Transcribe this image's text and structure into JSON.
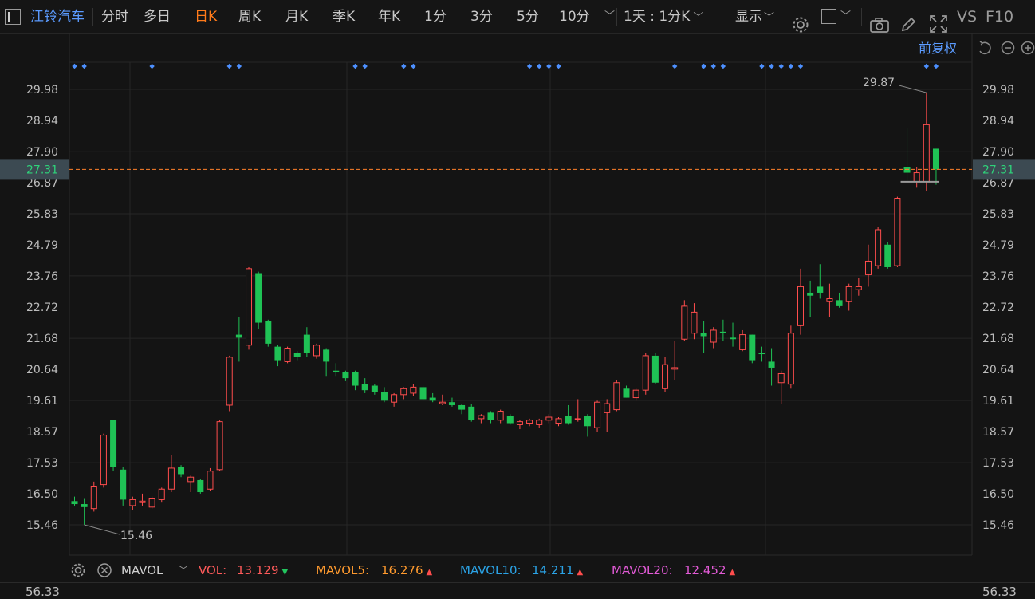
{
  "toolbar": {
    "stock_name": "江铃汽车",
    "periods": [
      {
        "label": "分时",
        "active": false
      },
      {
        "label": "多日",
        "active": false
      },
      {
        "label": "日K",
        "active": true
      },
      {
        "label": "周K",
        "active": false
      },
      {
        "label": "月K",
        "active": false
      },
      {
        "label": "季K",
        "active": false
      },
      {
        "label": "年K",
        "active": false
      },
      {
        "label": "1分",
        "active": false
      },
      {
        "label": "3分",
        "active": false
      },
      {
        "label": "5分",
        "active": false
      },
      {
        "label": "10分",
        "active": false
      }
    ],
    "combo_label": "1天 : 1分K",
    "display_label": "显示",
    "vs_label": "VS",
    "f10_label": "F10"
  },
  "chart_header": {
    "adjust_label": "前复权"
  },
  "indicator_bar": {
    "name": "MAVOL",
    "items": [
      {
        "label": "VOL:",
        "value": "13.129",
        "dir": "down",
        "color": "#ff5a5a"
      },
      {
        "label": "MAVOL5:",
        "value": "16.276",
        "dir": "up",
        "color": "#ff9a2e"
      },
      {
        "label": "MAVOL10:",
        "value": "14.211",
        "dir": "up",
        "color": "#2ba3e6"
      },
      {
        "label": "MAVOL20:",
        "value": "12.452",
        "dir": "up",
        "color": "#e25ad6"
      }
    ]
  },
  "volume_axis": {
    "top_label": "56.33"
  },
  "chart_data": {
    "type": "candlestick",
    "y_ticks": [
      "29.98",
      "28.94",
      "27.90",
      "26.87",
      "25.83",
      "24.79",
      "23.76",
      "22.72",
      "21.68",
      "20.64",
      "19.61",
      "18.57",
      "17.53",
      "16.50",
      "15.46"
    ],
    "ylim": [
      14.7,
      30.5
    ],
    "current_price": "27.31",
    "max_label": "29.87",
    "min_label": "15.46",
    "candles": [
      {
        "o": 16.25,
        "h": 16.4,
        "l": 16.1,
        "c": 16.15
      },
      {
        "o": 16.15,
        "h": 16.35,
        "l": 15.46,
        "c": 16.05
      },
      {
        "o": 16.0,
        "h": 16.9,
        "l": 15.9,
        "c": 16.75
      },
      {
        "o": 16.8,
        "h": 18.5,
        "l": 16.7,
        "c": 18.45
      },
      {
        "o": 18.95,
        "h": 18.95,
        "l": 17.25,
        "c": 17.4
      },
      {
        "o": 17.3,
        "h": 17.4,
        "l": 16.1,
        "c": 16.3
      },
      {
        "o": 16.1,
        "h": 16.4,
        "l": 15.95,
        "c": 16.3
      },
      {
        "o": 16.2,
        "h": 16.5,
        "l": 16.1,
        "c": 16.25
      },
      {
        "o": 16.05,
        "h": 16.4,
        "l": 16.0,
        "c": 16.35
      },
      {
        "o": 16.3,
        "h": 16.7,
        "l": 16.2,
        "c": 16.65
      },
      {
        "o": 16.65,
        "h": 17.8,
        "l": 16.55,
        "c": 17.35
      },
      {
        "o": 17.4,
        "h": 17.45,
        "l": 17.05,
        "c": 17.15
      },
      {
        "o": 16.9,
        "h": 17.1,
        "l": 16.55,
        "c": 17.05
      },
      {
        "o": 16.95,
        "h": 17.0,
        "l": 16.5,
        "c": 16.55
      },
      {
        "o": 16.65,
        "h": 17.35,
        "l": 16.6,
        "c": 17.25
      },
      {
        "o": 17.3,
        "h": 18.95,
        "l": 17.25,
        "c": 18.9
      },
      {
        "o": 19.45,
        "h": 21.1,
        "l": 19.25,
        "c": 21.05
      },
      {
        "o": 21.8,
        "h": 22.4,
        "l": 20.9,
        "c": 21.7
      },
      {
        "o": 21.45,
        "h": 24.05,
        "l": 21.3,
        "c": 24.0
      },
      {
        "o": 23.85,
        "h": 23.9,
        "l": 22.0,
        "c": 22.2
      },
      {
        "o": 22.25,
        "h": 22.3,
        "l": 21.4,
        "c": 21.5
      },
      {
        "o": 21.4,
        "h": 21.45,
        "l": 20.75,
        "c": 20.95
      },
      {
        "o": 20.9,
        "h": 21.4,
        "l": 20.85,
        "c": 21.35
      },
      {
        "o": 21.2,
        "h": 21.25,
        "l": 20.95,
        "c": 21.05
      },
      {
        "o": 21.8,
        "h": 22.05,
        "l": 21.05,
        "c": 21.2
      },
      {
        "o": 21.1,
        "h": 21.5,
        "l": 21.0,
        "c": 21.45
      },
      {
        "o": 21.3,
        "h": 21.35,
        "l": 20.4,
        "c": 20.9
      },
      {
        "o": 20.6,
        "h": 20.85,
        "l": 20.4,
        "c": 20.55
      },
      {
        "o": 20.55,
        "h": 20.6,
        "l": 20.25,
        "c": 20.35
      },
      {
        "o": 20.55,
        "h": 20.6,
        "l": 19.95,
        "c": 20.1
      },
      {
        "o": 20.15,
        "h": 20.35,
        "l": 19.85,
        "c": 19.95
      },
      {
        "o": 20.1,
        "h": 20.15,
        "l": 19.8,
        "c": 19.9
      },
      {
        "o": 19.9,
        "h": 20.05,
        "l": 19.55,
        "c": 19.6
      },
      {
        "o": 19.55,
        "h": 19.85,
        "l": 19.4,
        "c": 19.8
      },
      {
        "o": 19.8,
        "h": 20.05,
        "l": 19.65,
        "c": 20.0
      },
      {
        "o": 19.85,
        "h": 20.15,
        "l": 19.75,
        "c": 20.05
      },
      {
        "o": 20.05,
        "h": 20.1,
        "l": 19.6,
        "c": 19.65
      },
      {
        "o": 19.7,
        "h": 19.85,
        "l": 19.55,
        "c": 19.6
      },
      {
        "o": 19.5,
        "h": 19.8,
        "l": 19.45,
        "c": 19.55
      },
      {
        "o": 19.55,
        "h": 19.7,
        "l": 19.4,
        "c": 19.45
      },
      {
        "o": 19.45,
        "h": 19.5,
        "l": 19.15,
        "c": 19.3
      },
      {
        "o": 19.4,
        "h": 19.5,
        "l": 18.9,
        "c": 18.95
      },
      {
        "o": 19.0,
        "h": 19.15,
        "l": 18.85,
        "c": 19.1
      },
      {
        "o": 19.2,
        "h": 19.25,
        "l": 18.85,
        "c": 18.95
      },
      {
        "o": 18.95,
        "h": 19.3,
        "l": 18.85,
        "c": 19.25
      },
      {
        "o": 19.1,
        "h": 19.15,
        "l": 18.8,
        "c": 18.85
      },
      {
        "o": 18.8,
        "h": 18.95,
        "l": 18.65,
        "c": 18.9
      },
      {
        "o": 18.85,
        "h": 19.0,
        "l": 18.75,
        "c": 18.95
      },
      {
        "o": 18.8,
        "h": 19.0,
        "l": 18.7,
        "c": 18.95
      },
      {
        "o": 18.95,
        "h": 19.15,
        "l": 18.85,
        "c": 19.05
      },
      {
        "o": 18.85,
        "h": 19.05,
        "l": 18.75,
        "c": 19.0
      },
      {
        "o": 19.1,
        "h": 19.45,
        "l": 18.8,
        "c": 18.85
      },
      {
        "o": 19.0,
        "h": 19.65,
        "l": 18.9,
        "c": 19.0
      },
      {
        "o": 19.1,
        "h": 19.15,
        "l": 18.4,
        "c": 18.75
      },
      {
        "o": 18.7,
        "h": 19.6,
        "l": 18.55,
        "c": 19.55
      },
      {
        "o": 19.2,
        "h": 19.65,
        "l": 18.55,
        "c": 19.5
      },
      {
        "o": 19.3,
        "h": 20.3,
        "l": 19.25,
        "c": 20.2
      },
      {
        "o": 20.0,
        "h": 20.1,
        "l": 19.7,
        "c": 19.7
      },
      {
        "o": 19.7,
        "h": 20.0,
        "l": 19.6,
        "c": 19.95
      },
      {
        "o": 19.95,
        "h": 21.2,
        "l": 19.8,
        "c": 21.1
      },
      {
        "o": 21.1,
        "h": 21.2,
        "l": 20.15,
        "c": 20.2
      },
      {
        "o": 20.0,
        "h": 21.05,
        "l": 19.9,
        "c": 20.8
      },
      {
        "o": 20.65,
        "h": 21.6,
        "l": 20.3,
        "c": 20.7
      },
      {
        "o": 21.65,
        "h": 22.95,
        "l": 21.6,
        "c": 22.75
      },
      {
        "o": 21.85,
        "h": 22.85,
        "l": 21.65,
        "c": 22.55
      },
      {
        "o": 21.85,
        "h": 22.25,
        "l": 21.2,
        "c": 21.75
      },
      {
        "o": 21.55,
        "h": 22.05,
        "l": 21.35,
        "c": 21.95
      },
      {
        "o": 21.9,
        "h": 22.3,
        "l": 21.6,
        "c": 21.85
      },
      {
        "o": 21.7,
        "h": 22.2,
        "l": 21.4,
        "c": 21.65
      },
      {
        "o": 21.3,
        "h": 21.95,
        "l": 21.25,
        "c": 21.8
      },
      {
        "o": 21.8,
        "h": 21.8,
        "l": 20.85,
        "c": 20.95
      },
      {
        "o": 21.2,
        "h": 21.4,
        "l": 20.9,
        "c": 21.15
      },
      {
        "o": 20.9,
        "h": 21.35,
        "l": 20.1,
        "c": 20.7
      },
      {
        "o": 20.2,
        "h": 20.6,
        "l": 19.5,
        "c": 20.5
      },
      {
        "o": 20.15,
        "h": 22.1,
        "l": 20.0,
        "c": 21.85
      },
      {
        "o": 22.1,
        "h": 24.0,
        "l": 21.8,
        "c": 23.4
      },
      {
        "o": 23.2,
        "h": 23.6,
        "l": 22.4,
        "c": 23.1
      },
      {
        "o": 23.4,
        "h": 24.15,
        "l": 23.0,
        "c": 23.2
      },
      {
        "o": 22.9,
        "h": 23.5,
        "l": 22.4,
        "c": 23.0
      },
      {
        "o": 22.95,
        "h": 23.2,
        "l": 22.7,
        "c": 22.75
      },
      {
        "o": 22.9,
        "h": 23.5,
        "l": 22.6,
        "c": 23.4
      },
      {
        "o": 23.3,
        "h": 23.7,
        "l": 23.1,
        "c": 23.4
      },
      {
        "o": 23.8,
        "h": 24.8,
        "l": 23.4,
        "c": 24.25
      },
      {
        "o": 24.1,
        "h": 25.4,
        "l": 24.0,
        "c": 25.3
      },
      {
        "o": 24.8,
        "h": 24.9,
        "l": 24.0,
        "c": 24.05
      },
      {
        "o": 24.1,
        "h": 26.4,
        "l": 24.05,
        "c": 26.35
      },
      {
        "o": 27.4,
        "h": 28.7,
        "l": 26.9,
        "c": 27.2
      },
      {
        "o": 26.9,
        "h": 27.4,
        "l": 26.7,
        "c": 27.2
      },
      {
        "o": 26.9,
        "h": 29.87,
        "l": 26.6,
        "c": 28.8
      },
      {
        "o": 28.0,
        "h": 28.0,
        "l": 26.8,
        "c": 27.31
      }
    ],
    "marker_positions": [
      0,
      1,
      8,
      16,
      17,
      29,
      30,
      34,
      35,
      47,
      48,
      49,
      50,
      62,
      65,
      66,
      67,
      71,
      72,
      73,
      74,
      75,
      88,
      89
    ]
  }
}
